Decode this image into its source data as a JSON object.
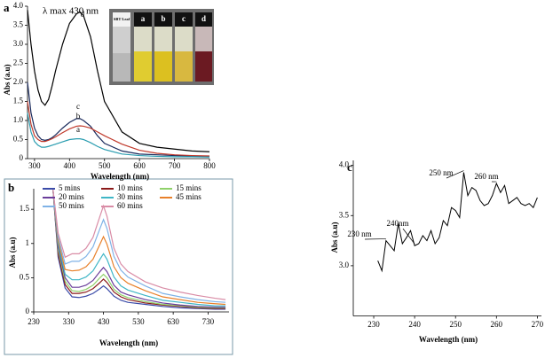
{
  "chart_data": [
    {
      "type": "line",
      "panel_label": "a",
      "title": "λ max 430 nm",
      "xlabel": "Wavelength (nm)",
      "ylabel": "Abs (a.u)",
      "inset_labels": [
        "SBT Leaf",
        "a",
        "b",
        "c",
        "d"
      ],
      "x": [
        280,
        290,
        300,
        310,
        320,
        330,
        340,
        350,
        360,
        380,
        400,
        420,
        430,
        440,
        460,
        480,
        500,
        550,
        600,
        650,
        700,
        750,
        800
      ],
      "series": [
        {
          "name": "d",
          "color": "#000000",
          "values": [
            3.9,
            3.0,
            2.3,
            1.8,
            1.5,
            1.4,
            1.55,
            1.9,
            2.3,
            3.0,
            3.55,
            3.8,
            3.85,
            3.75,
            3.2,
            2.3,
            1.5,
            0.7,
            0.4,
            0.3,
            0.25,
            0.2,
            0.18
          ]
        },
        {
          "name": "c",
          "color": "#1a2a5c",
          "values": [
            2.0,
            1.2,
            0.8,
            0.6,
            0.5,
            0.48,
            0.5,
            0.55,
            0.62,
            0.8,
            0.95,
            1.05,
            1.05,
            1.0,
            0.85,
            0.6,
            0.4,
            0.2,
            0.12,
            0.1,
            0.08,
            0.07,
            0.06
          ]
        },
        {
          "name": "b",
          "color": "#c0392b",
          "values": [
            1.5,
            0.9,
            0.6,
            0.5,
            0.45,
            0.45,
            0.48,
            0.52,
            0.57,
            0.68,
            0.78,
            0.85,
            0.86,
            0.85,
            0.8,
            0.7,
            0.6,
            0.38,
            0.22,
            0.14,
            0.1,
            0.08,
            0.07
          ]
        },
        {
          "name": "a",
          "color": "#2a9db0",
          "values": [
            1.2,
            0.7,
            0.45,
            0.35,
            0.3,
            0.3,
            0.32,
            0.35,
            0.38,
            0.44,
            0.5,
            0.52,
            0.52,
            0.5,
            0.42,
            0.32,
            0.24,
            0.12,
            0.08,
            0.06,
            0.05,
            0.05,
            0.04
          ]
        }
      ],
      "xlim": [
        280,
        800
      ],
      "xticks": [
        300,
        400,
        500,
        600,
        700,
        800
      ],
      "ylim": [
        0,
        4
      ],
      "yticks": [
        0,
        0.5,
        {
          "value": 1,
          "label": "1.0"
        },
        1.5,
        {
          "value": 2,
          "label": "2.0"
        },
        2.5,
        {
          "value": 3,
          "label": "3.0"
        },
        3.5,
        {
          "value": 4,
          "label": "4.0"
        }
      ]
    },
    {
      "type": "line",
      "panel_label": "b",
      "xlabel": "Wavelength (nm)",
      "ylabel": "Abs (a.u)",
      "x": [
        285,
        300,
        320,
        340,
        360,
        380,
        400,
        420,
        430,
        440,
        460,
        480,
        500,
        550,
        600,
        650,
        700,
        750,
        780
      ],
      "series": [
        {
          "name": "5 mins",
          "color": "#3b4ba8",
          "values": [
            1.8,
            0.8,
            0.35,
            0.22,
            0.21,
            0.23,
            0.27,
            0.34,
            0.38,
            0.34,
            0.23,
            0.17,
            0.14,
            0.11,
            0.08,
            0.06,
            0.05,
            0.04,
            0.04
          ]
        },
        {
          "name": "10 mins",
          "color": "#8b1a1a",
          "values": [
            1.8,
            0.85,
            0.4,
            0.27,
            0.27,
            0.29,
            0.34,
            0.43,
            0.48,
            0.43,
            0.29,
            0.22,
            0.18,
            0.13,
            0.1,
            0.08,
            0.06,
            0.05,
            0.05
          ]
        },
        {
          "name": "15 mins",
          "color": "#8fd16a",
          "values": [
            1.8,
            0.9,
            0.45,
            0.31,
            0.3,
            0.33,
            0.39,
            0.5,
            0.55,
            0.5,
            0.33,
            0.25,
            0.21,
            0.15,
            0.11,
            0.09,
            0.07,
            0.06,
            0.06
          ]
        },
        {
          "name": "20 mins",
          "color": "#6a3d9a",
          "values": [
            1.8,
            0.95,
            0.5,
            0.36,
            0.36,
            0.39,
            0.46,
            0.59,
            0.65,
            0.59,
            0.39,
            0.29,
            0.25,
            0.18,
            0.13,
            0.1,
            0.08,
            0.07,
            0.07
          ]
        },
        {
          "name": "30 mins",
          "color": "#3fb6c6",
          "values": [
            1.8,
            1.0,
            0.55,
            0.47,
            0.47,
            0.51,
            0.6,
            0.77,
            0.85,
            0.77,
            0.51,
            0.38,
            0.32,
            0.24,
            0.17,
            0.14,
            0.11,
            0.09,
            0.09
          ]
        },
        {
          "name": "45 mins",
          "color": "#e8802a",
          "values": [
            1.8,
            1.05,
            0.62,
            0.6,
            0.61,
            0.66,
            0.77,
            0.99,
            1.1,
            0.99,
            0.66,
            0.5,
            0.42,
            0.31,
            0.22,
            0.18,
            0.14,
            0.12,
            0.11
          ]
        },
        {
          "name": "50 mins",
          "color": "#7fb2e6",
          "values": [
            1.8,
            1.1,
            0.7,
            0.74,
            0.74,
            0.81,
            0.95,
            1.22,
            1.35,
            1.22,
            0.81,
            0.61,
            0.51,
            0.38,
            0.27,
            0.22,
            0.18,
            0.15,
            0.14
          ]
        },
        {
          "name": "60 mins",
          "color": "#d98ca6",
          "values": [
            1.8,
            1.15,
            0.8,
            0.85,
            0.85,
            0.93,
            1.09,
            1.4,
            1.55,
            1.4,
            0.93,
            0.7,
            0.59,
            0.44,
            0.35,
            0.29,
            0.24,
            0.2,
            0.18
          ]
        }
      ],
      "xlim": [
        230,
        790
      ],
      "xticks": [
        230,
        330,
        430,
        530,
        630,
        730
      ],
      "ylim": [
        0,
        1.8
      ],
      "yticks": [
        0,
        0.5,
        1,
        1.5
      ]
    },
    {
      "type": "line",
      "panel_label": "c",
      "xlabel": "Wavelength (nm)",
      "ylabel": "Abs (a.u)",
      "annotations": [
        "230 nm",
        "240nm",
        "250 nm",
        "260 nm"
      ],
      "x": [
        231,
        232,
        233,
        234,
        235,
        236,
        237,
        238,
        239,
        240,
        241,
        242,
        243,
        244,
        245,
        246,
        247,
        248,
        249,
        250,
        251,
        252,
        253,
        254,
        255,
        256,
        257,
        258,
        259,
        260,
        261,
        262,
        263,
        264,
        265,
        266,
        267,
        268,
        269,
        270
      ],
      "series": [
        {
          "color": "#000000",
          "values": [
            3.05,
            2.95,
            3.25,
            3.2,
            3.15,
            3.42,
            3.22,
            3.28,
            3.35,
            3.2,
            3.22,
            3.3,
            3.25,
            3.35,
            3.22,
            3.28,
            3.45,
            3.4,
            3.58,
            3.55,
            3.48,
            3.93,
            3.7,
            3.78,
            3.75,
            3.65,
            3.6,
            3.62,
            3.7,
            3.82,
            3.73,
            3.8,
            3.62,
            3.65,
            3.68,
            3.62,
            3.6,
            3.62,
            3.58,
            3.68
          ]
        }
      ],
      "xlim": [
        225,
        271
      ],
      "xticks": [
        230,
        240,
        250,
        260,
        270
      ],
      "ylim": [
        2.5,
        4.05
      ],
      "yticks": [
        {
          "value": 3,
          "label": "3.0"
        },
        3.5,
        {
          "value": 4,
          "label": "4.0"
        }
      ]
    }
  ]
}
